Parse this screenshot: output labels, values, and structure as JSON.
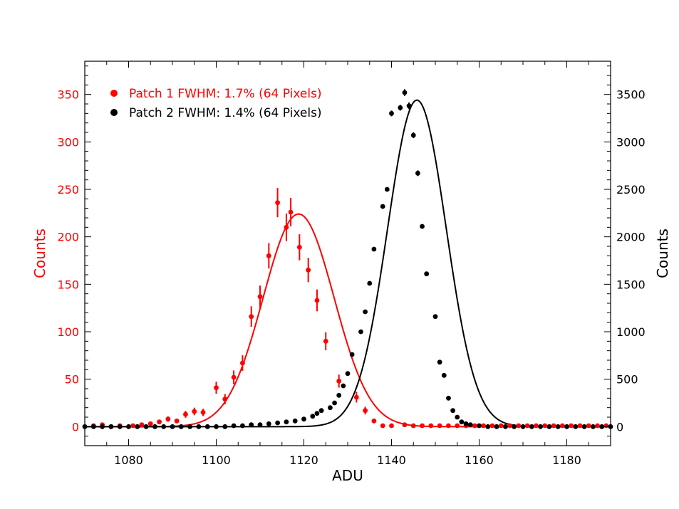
{
  "chart_data": {
    "type": "scatter",
    "xlabel": "ADU",
    "ylabel_left": "Counts",
    "ylabel_right": "Counts",
    "xlim": [
      1070,
      1190
    ],
    "ylim_left": [
      -20,
      385
    ],
    "ylim_right": [
      -200,
      3850
    ],
    "xticks": [
      1080,
      1100,
      1120,
      1140,
      1160,
      1180
    ],
    "yticks_left": [
      0,
      50,
      100,
      150,
      200,
      250,
      300,
      350
    ],
    "yticks_right": [
      0,
      500,
      1000,
      1500,
      2000,
      2500,
      3000,
      3500
    ],
    "legend": {
      "placement": "top-left"
    },
    "colors": {
      "patch1": "#ff0000",
      "patch2": "#000000",
      "axis_left": "#ff0000",
      "axis_right": "#000000"
    },
    "series": [
      {
        "name": "Patch 1 FWHM: 1.7% (64 Pixels)",
        "axis": "left",
        "color": "#ff0000",
        "points": [
          [
            1072,
            1,
            1
          ],
          [
            1074,
            2,
            1.4
          ],
          [
            1076,
            0,
            1
          ],
          [
            1078,
            1,
            1
          ],
          [
            1081,
            1,
            1
          ],
          [
            1083,
            2,
            1.4
          ],
          [
            1085,
            3,
            1.7
          ],
          [
            1087,
            5,
            2.2
          ],
          [
            1089,
            8,
            2.8
          ],
          [
            1091,
            6,
            2.4
          ],
          [
            1093,
            13,
            3.6
          ],
          [
            1095,
            16,
            4
          ],
          [
            1097,
            15,
            3.9
          ],
          [
            1100,
            41,
            6.4
          ],
          [
            1102,
            29,
            5.4
          ],
          [
            1104,
            52,
            7.2
          ],
          [
            1106,
            67,
            8.2
          ],
          [
            1108,
            116,
            10.8
          ],
          [
            1110,
            137,
            11.7
          ],
          [
            1112,
            180,
            13.4
          ],
          [
            1114,
            236,
            15.4
          ],
          [
            1116,
            210,
            14.5
          ],
          [
            1117,
            226,
            15
          ],
          [
            1119,
            189,
            13.7
          ],
          [
            1121,
            165,
            12.8
          ],
          [
            1123,
            133,
            11.5
          ],
          [
            1125,
            90,
            9.5
          ],
          [
            1128,
            48,
            6.9
          ],
          [
            1132,
            31,
            5.6
          ],
          [
            1134,
            17,
            4.1
          ],
          [
            1136,
            6,
            2.4
          ],
          [
            1138,
            1,
            1
          ],
          [
            1140,
            1,
            1
          ],
          [
            1143,
            2,
            1.4
          ],
          [
            1145,
            1,
            1
          ],
          [
            1147,
            1,
            1
          ],
          [
            1149,
            1,
            1
          ],
          [
            1151,
            1,
            1
          ],
          [
            1153,
            1,
            1
          ],
          [
            1155,
            1,
            1
          ],
          [
            1157,
            1,
            1
          ],
          [
            1159,
            1,
            1
          ],
          [
            1161,
            1,
            1
          ],
          [
            1163,
            1,
            1
          ],
          [
            1165,
            1,
            1
          ],
          [
            1167,
            1,
            1
          ],
          [
            1169,
            1,
            1
          ],
          [
            1171,
            1,
            1
          ],
          [
            1173,
            1,
            1
          ],
          [
            1175,
            1,
            1
          ],
          [
            1177,
            1,
            1
          ],
          [
            1179,
            1,
            1
          ],
          [
            1181,
            1,
            1
          ],
          [
            1183,
            1,
            1
          ],
          [
            1185,
            1,
            1
          ],
          [
            1187,
            1,
            1
          ],
          [
            1189,
            1,
            1
          ]
        ],
        "fit": {
          "mu": 1118.8,
          "sigma": 8.1,
          "amp": 224
        }
      },
      {
        "name": "Patch 2 FWHM: 1.4% (64 Pixels)",
        "axis": "right",
        "color": "#000000",
        "points": [
          [
            1070,
            0,
            0
          ],
          [
            1072,
            0,
            0
          ],
          [
            1074,
            0,
            0
          ],
          [
            1076,
            0,
            0
          ],
          [
            1078,
            0,
            0
          ],
          [
            1080,
            0,
            0
          ],
          [
            1082,
            0,
            0
          ],
          [
            1084,
            0,
            0
          ],
          [
            1086,
            0,
            0
          ],
          [
            1088,
            0,
            0
          ],
          [
            1090,
            0,
            0
          ],
          [
            1092,
            0,
            0
          ],
          [
            1094,
            0,
            0
          ],
          [
            1096,
            0,
            0
          ],
          [
            1098,
            0,
            0
          ],
          [
            1100,
            0,
            0
          ],
          [
            1102,
            0,
            0
          ],
          [
            1104,
            10,
            0
          ],
          [
            1106,
            10,
            0
          ],
          [
            1108,
            20,
            0
          ],
          [
            1110,
            20,
            0
          ],
          [
            1112,
            30,
            0
          ],
          [
            1114,
            40,
            0
          ],
          [
            1116,
            50,
            0
          ],
          [
            1118,
            60,
            0
          ],
          [
            1120,
            80,
            0
          ],
          [
            1122,
            110,
            0
          ],
          [
            1123,
            140,
            0
          ],
          [
            1124,
            170,
            0
          ],
          [
            1126,
            200,
            0
          ],
          [
            1127,
            250,
            0
          ],
          [
            1128,
            330,
            0
          ],
          [
            1129,
            430,
            0
          ],
          [
            1130,
            560,
            0
          ],
          [
            1131,
            760,
            0
          ],
          [
            1133,
            1000,
            0
          ],
          [
            1134,
            1210,
            0
          ],
          [
            1135,
            1510,
            0
          ],
          [
            1136,
            1870,
            0
          ],
          [
            1138,
            2320,
            0
          ],
          [
            1139,
            2500,
            0
          ],
          [
            1140,
            3300,
            30
          ],
          [
            1142,
            3360,
            30
          ],
          [
            1143,
            3520,
            35
          ],
          [
            1144,
            3380,
            35
          ],
          [
            1145,
            3070,
            30
          ],
          [
            1146,
            2670,
            30
          ],
          [
            1147,
            2110,
            0
          ],
          [
            1148,
            1610,
            0
          ],
          [
            1150,
            1160,
            0
          ],
          [
            1151,
            680,
            0
          ],
          [
            1152,
            540,
            0
          ],
          [
            1153,
            300,
            0
          ],
          [
            1154,
            170,
            0
          ],
          [
            1155,
            100,
            0
          ],
          [
            1156,
            50,
            0
          ],
          [
            1157,
            30,
            0
          ],
          [
            1158,
            20,
            0
          ],
          [
            1160,
            10,
            0
          ],
          [
            1162,
            0,
            0
          ],
          [
            1164,
            0,
            0
          ],
          [
            1166,
            0,
            0
          ],
          [
            1168,
            0,
            0
          ],
          [
            1170,
            0,
            0
          ],
          [
            1172,
            0,
            0
          ],
          [
            1174,
            0,
            0
          ],
          [
            1176,
            0,
            0
          ],
          [
            1178,
            0,
            0
          ],
          [
            1180,
            0,
            0
          ],
          [
            1182,
            0,
            0
          ],
          [
            1184,
            0,
            0
          ],
          [
            1186,
            0,
            0
          ],
          [
            1188,
            0,
            0
          ],
          [
            1190,
            0,
            0
          ]
        ],
        "fit": {
          "mu": 1145.8,
          "sigma": 6.7,
          "amp": 3440
        }
      }
    ]
  }
}
